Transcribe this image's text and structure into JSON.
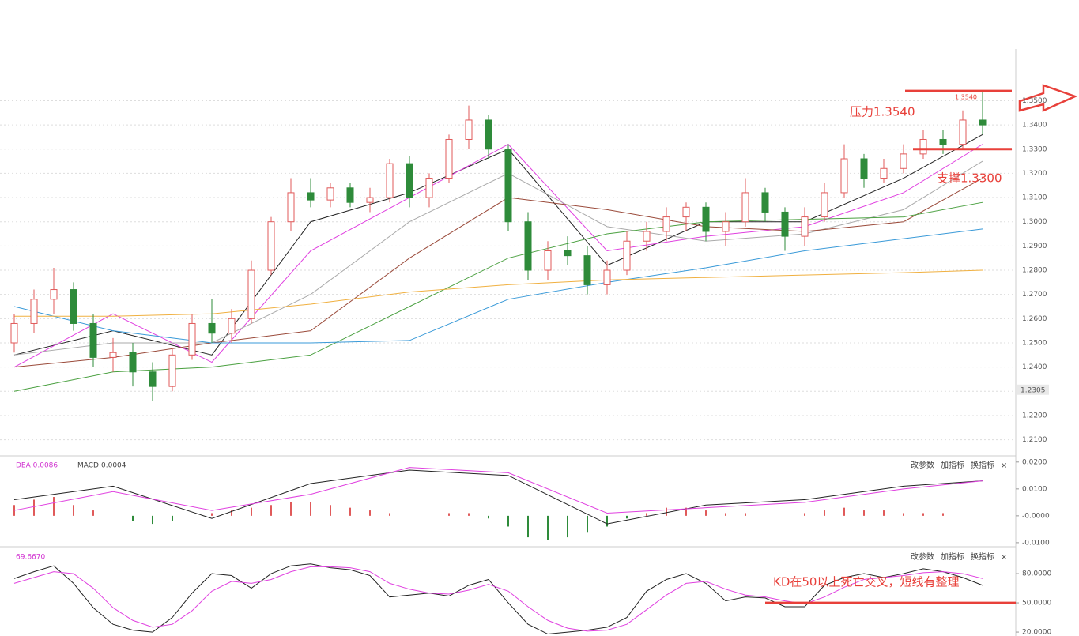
{
  "chart_data": [
    {
      "type": "candlestick",
      "ylim": [
        1.204,
        1.372
      ],
      "yticks": [
        {
          "value": 1.21,
          "label": "1.2100"
        },
        {
          "value": 1.22,
          "label": "1.2200"
        },
        {
          "value": 1.23,
          "label": "1.2300"
        },
        {
          "value": 1.24,
          "label": "1.2400"
        },
        {
          "value": 1.25,
          "label": "1.2500"
        },
        {
          "value": 1.26,
          "label": "1.2600"
        },
        {
          "value": 1.27,
          "label": "1.2700"
        },
        {
          "value": 1.28,
          "label": "1.2800"
        },
        {
          "value": 1.29,
          "label": "1.2900"
        },
        {
          "value": 1.3,
          "label": "1.3000"
        },
        {
          "value": 1.31,
          "label": "1.3100"
        },
        {
          "value": 1.32,
          "label": "1.3200"
        },
        {
          "value": 1.33,
          "label": "1.3300"
        },
        {
          "value": 1.34,
          "label": "1.3400"
        },
        {
          "value": 1.35,
          "label": "1.3500"
        }
      ],
      "grid": true,
      "up_color": "#e05a5a",
      "down_color": "#2e8b3a",
      "open": [
        1.25,
        1.258,
        1.268,
        1.272,
        1.258,
        1.244,
        1.246,
        1.238,
        1.232,
        1.245,
        1.258,
        1.254,
        1.26,
        1.28,
        1.3,
        1.312,
        1.309,
        1.314,
        1.308,
        1.31,
        1.324,
        1.31,
        1.318,
        1.334,
        1.342,
        1.33,
        1.3,
        1.28,
        1.288,
        1.286,
        1.274,
        1.28,
        1.292,
        1.296,
        1.302,
        1.306,
        1.296,
        1.3,
        1.312,
        1.304,
        1.294,
        1.302,
        1.312,
        1.326,
        1.318,
        1.322,
        1.328,
        1.334,
        1.332,
        1.342
      ],
      "high": [
        1.262,
        1.272,
        1.281,
        1.275,
        1.262,
        1.252,
        1.25,
        1.242,
        1.248,
        1.262,
        1.268,
        1.264,
        1.284,
        1.302,
        1.318,
        1.318,
        1.316,
        1.316,
        1.314,
        1.326,
        1.327,
        1.32,
        1.336,
        1.348,
        1.344,
        1.332,
        1.304,
        1.292,
        1.294,
        1.29,
        1.284,
        1.296,
        1.3,
        1.306,
        1.308,
        1.308,
        1.304,
        1.318,
        1.314,
        1.306,
        1.306,
        1.316,
        1.332,
        1.328,
        1.326,
        1.332,
        1.338,
        1.338,
        1.346,
        1.354
      ],
      "low": [
        1.246,
        1.254,
        1.262,
        1.255,
        1.24,
        1.238,
        1.232,
        1.226,
        1.23,
        1.243,
        1.25,
        1.25,
        1.258,
        1.278,
        1.296,
        1.306,
        1.306,
        1.306,
        1.304,
        1.308,
        1.306,
        1.306,
        1.316,
        1.33,
        1.326,
        1.296,
        1.276,
        1.276,
        1.282,
        1.27,
        1.27,
        1.278,
        1.288,
        1.292,
        1.296,
        1.292,
        1.29,
        1.298,
        1.3,
        1.288,
        1.29,
        1.3,
        1.31,
        1.314,
        1.316,
        1.32,
        1.326,
        1.328,
        1.33,
        1.336
      ],
      "close": [
        1.258,
        1.268,
        1.272,
        1.258,
        1.244,
        1.246,
        1.238,
        1.232,
        1.245,
        1.258,
        1.254,
        1.26,
        1.28,
        1.3,
        1.312,
        1.309,
        1.314,
        1.308,
        1.31,
        1.324,
        1.31,
        1.318,
        1.334,
        1.342,
        1.33,
        1.3,
        1.28,
        1.288,
        1.286,
        1.274,
        1.28,
        1.292,
        1.296,
        1.302,
        1.306,
        1.296,
        1.3,
        1.312,
        1.304,
        1.294,
        1.302,
        1.312,
        1.326,
        1.318,
        1.322,
        1.328,
        1.334,
        1.332,
        1.342,
        1.34
      ],
      "ma": {
        "x": [
          0,
          5,
          10,
          15,
          20,
          25,
          30,
          35,
          40,
          45,
          49
        ],
        "series": [
          {
            "color": "#222222",
            "values": [
              1.245,
              1.255,
              1.245,
              1.3,
              1.312,
              1.33,
              1.282,
              1.3,
              1.3,
              1.318,
              1.336
            ]
          },
          {
            "color": "#e040e0",
            "values": [
              1.24,
              1.262,
              1.242,
              1.288,
              1.31,
              1.332,
              1.288,
              1.294,
              1.298,
              1.312,
              1.332
            ]
          },
          {
            "color": "#aaaaaa",
            "values": [
              1.245,
              1.25,
              1.25,
              1.27,
              1.3,
              1.32,
              1.298,
              1.292,
              1.295,
              1.305,
              1.325
            ]
          },
          {
            "color": "#9a4a3a",
            "values": [
              1.24,
              1.244,
              1.25,
              1.255,
              1.285,
              1.31,
              1.305,
              1.298,
              1.296,
              1.3,
              1.318
            ]
          },
          {
            "color": "#4aa040",
            "values": [
              1.23,
              1.238,
              1.24,
              1.245,
              1.265,
              1.285,
              1.295,
              1.3,
              1.301,
              1.302,
              1.308
            ]
          },
          {
            "color": "#3a9ad8",
            "values": [
              1.265,
              1.255,
              1.25,
              1.25,
              1.251,
              1.268,
              1.275,
              1.281,
              1.288,
              1.293,
              1.297
            ]
          },
          {
            "color": "#f0b040",
            "values": [
              1.261,
              1.261,
              1.262,
              1.266,
              1.271,
              1.274,
              1.276,
              1.277,
              1.278,
              1.279,
              1.28
            ]
          }
        ]
      },
      "annotations": [
        {
          "text": "压力1.3540",
          "value": 1.354
        },
        {
          "text": "支撑1.3300",
          "value": 1.33
        }
      ],
      "high_marker": {
        "value": 1.354,
        "label": "1.3540"
      },
      "cursor": {
        "value": 1.2305,
        "label": "1.2305"
      }
    },
    {
      "type": "macd",
      "ylim": [
        -0.0115,
        0.022
      ],
      "yticks": [
        {
          "value": 0.02,
          "label": "0.0200"
        },
        {
          "value": 0.01,
          "label": "0.0100"
        },
        {
          "value": 0,
          "label": "-0.0000"
        },
        {
          "value": -0.01,
          "label": "-0.0100"
        }
      ],
      "header": [
        "DEA 0.0086",
        "MACD:0.0004"
      ],
      "buttons": [
        "改参数",
        "加指标",
        "换指标",
        "×"
      ],
      "x": [
        0,
        5,
        10,
        15,
        20,
        25,
        30,
        35,
        40,
        45,
        49
      ],
      "series": [
        {
          "color": "#222222",
          "values": [
            0.006,
            0.011,
            -0.001,
            0.012,
            0.017,
            0.015,
            -0.003,
            0.004,
            0.006,
            0.011,
            0.013
          ]
        },
        {
          "color": "#e040e0",
          "values": [
            0.002,
            0.009,
            0.002,
            0.008,
            0.018,
            0.016,
            0.001,
            0.003,
            0.005,
            0.01,
            0.013
          ]
        }
      ],
      "hist": [
        0.004,
        0.006,
        0.007,
        0.004,
        0.002,
        0.0,
        -0.002,
        -0.003,
        -0.002,
        0.0,
        0.001,
        0.002,
        0.003,
        0.004,
        0.005,
        0.005,
        0.004,
        0.003,
        0.002,
        0.001,
        0.0,
        0.0,
        0.001,
        0.001,
        -0.001,
        -0.004,
        -0.008,
        -0.009,
        -0.008,
        -0.006,
        -0.004,
        -0.001,
        0.001,
        0.003,
        0.003,
        0.002,
        0.001,
        0.001,
        0.0,
        0.0,
        0.001,
        0.002,
        0.003,
        0.002,
        0.002,
        0.001,
        0.001,
        0.001,
        0.0,
        0.0
      ],
      "up_color": "#e05a5a",
      "down_color": "#2e8b3a"
    },
    {
      "type": "kd",
      "ylim": [
        16,
        106
      ],
      "yticks": [
        {
          "value": 80,
          "label": "80.0000"
        },
        {
          "value": 50,
          "label": "50.0000"
        },
        {
          "value": 20,
          "label": "20.0000"
        }
      ],
      "header": [
        "69.6670"
      ],
      "buttons": [
        "改参数",
        "加指标",
        "换指标",
        "×"
      ],
      "series": [
        {
          "color": "#222222",
          "values": [
            75,
            82,
            88,
            70,
            45,
            28,
            22,
            20,
            35,
            60,
            80,
            78,
            65,
            80,
            88,
            90,
            86,
            84,
            78,
            56,
            58,
            60,
            57,
            68,
            74,
            50,
            28,
            18,
            20,
            22,
            25,
            35,
            62,
            74,
            80,
            70,
            52,
            56,
            55,
            46,
            46,
            68,
            76,
            80,
            76,
            80,
            85,
            82,
            76,
            68
          ]
        },
        {
          "color": "#e040e0",
          "values": [
            70,
            76,
            82,
            80,
            65,
            45,
            32,
            25,
            28,
            42,
            62,
            72,
            70,
            74,
            82,
            87,
            87,
            86,
            82,
            70,
            64,
            60,
            59,
            63,
            69,
            62,
            46,
            32,
            24,
            21,
            22,
            28,
            43,
            58,
            70,
            72,
            64,
            58,
            56,
            52,
            49,
            56,
            66,
            74,
            76,
            78,
            81,
            82,
            80,
            75
          ]
        }
      ],
      "annotation": {
        "text": "KD在50以上死亡交叉，短线有整理",
        "value": 50
      }
    }
  ]
}
